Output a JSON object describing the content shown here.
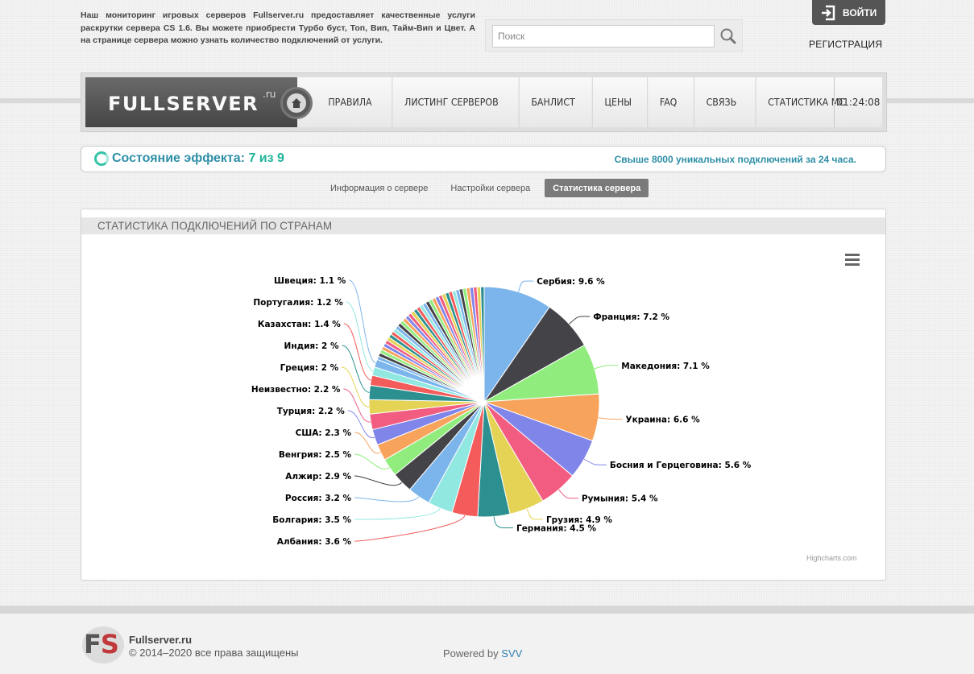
{
  "intro_text": "Наш мониторинг игровых серверов Fullserver.ru предоставляет качественные услуги раскрутки сервера CS 1.6. Вы можете приобрести Турбо буст, Топ, Вип, Тайм-Вип и Цвет. А на странице сервера можно узнать количество подключений от услуги.",
  "search": {
    "placeholder": "Поиск"
  },
  "auth": {
    "login": "ВОЙТИ",
    "register": "РЕГИСТРАЦИЯ"
  },
  "logo": {
    "text": "FULLSERVER",
    "tld": ".ru"
  },
  "nav": {
    "items": [
      "ПРАВИЛА",
      "ЛИСТИНГ СЕРВЕРОВ",
      "БАНЛИСТ",
      "ЦЕНЫ",
      "FAQ",
      "СВЯЗЬ",
      "СТАТИСТИКА МС"
    ],
    "clock": "01:24:08"
  },
  "effect": {
    "label": "Состояние эффекта:",
    "value": "7 из 9",
    "right_text": "Свыше 8000 уникальных подключений за 24 часа."
  },
  "tabs": [
    "Информация о сервере",
    "Настройки сервера",
    "Статистика сервера"
  ],
  "stats_title": "СТАТИСТИКА ПОДКЛЮЧЕНИЙ ПО СТРАНАМ",
  "credit": "Highcharts.com",
  "chart_data": {
    "type": "pie",
    "unit": "%",
    "categories": [
      "Сербия",
      "Франция",
      "Македония",
      "Украина",
      "Босния и Герцеговина",
      "Румыния",
      "Грузия",
      "Германия",
      "Албания",
      "Болгария",
      "Россия",
      "Алжир",
      "Венгрия",
      "США",
      "Турция",
      "Неизвестно",
      "Греция",
      "Индия",
      "Казахстан",
      "Португалия",
      "Швеция"
    ],
    "values": [
      9.6,
      7.2,
      7.1,
      6.6,
      5.6,
      5.4,
      4.9,
      4.5,
      3.6,
      3.5,
      3.2,
      2.9,
      2.5,
      2.3,
      2.2,
      2.2,
      2.0,
      2.0,
      1.4,
      1.2,
      1.1
    ],
    "colors": [
      "#7cb5ec",
      "#434348",
      "#90ed7d",
      "#f7a35c",
      "#8085e9",
      "#f15c80",
      "#e4d354",
      "#2b908f",
      "#f45b5b",
      "#91e8e1",
      "#7cb5ec",
      "#434348",
      "#90ed7d",
      "#f7a35c",
      "#8085e9",
      "#f15c80",
      "#e4d354",
      "#2b908f",
      "#f45b5b",
      "#91e8e1",
      "#7cb5ec"
    ],
    "label_format": "{name}: {value} %"
  },
  "footer": {
    "site": "Fullserver.ru",
    "copyright": "© 2014–2020 все права защищены",
    "powered_prefix": "Powered by",
    "powered_link": "SVV",
    "logo_f": "F",
    "logo_s": "S"
  }
}
